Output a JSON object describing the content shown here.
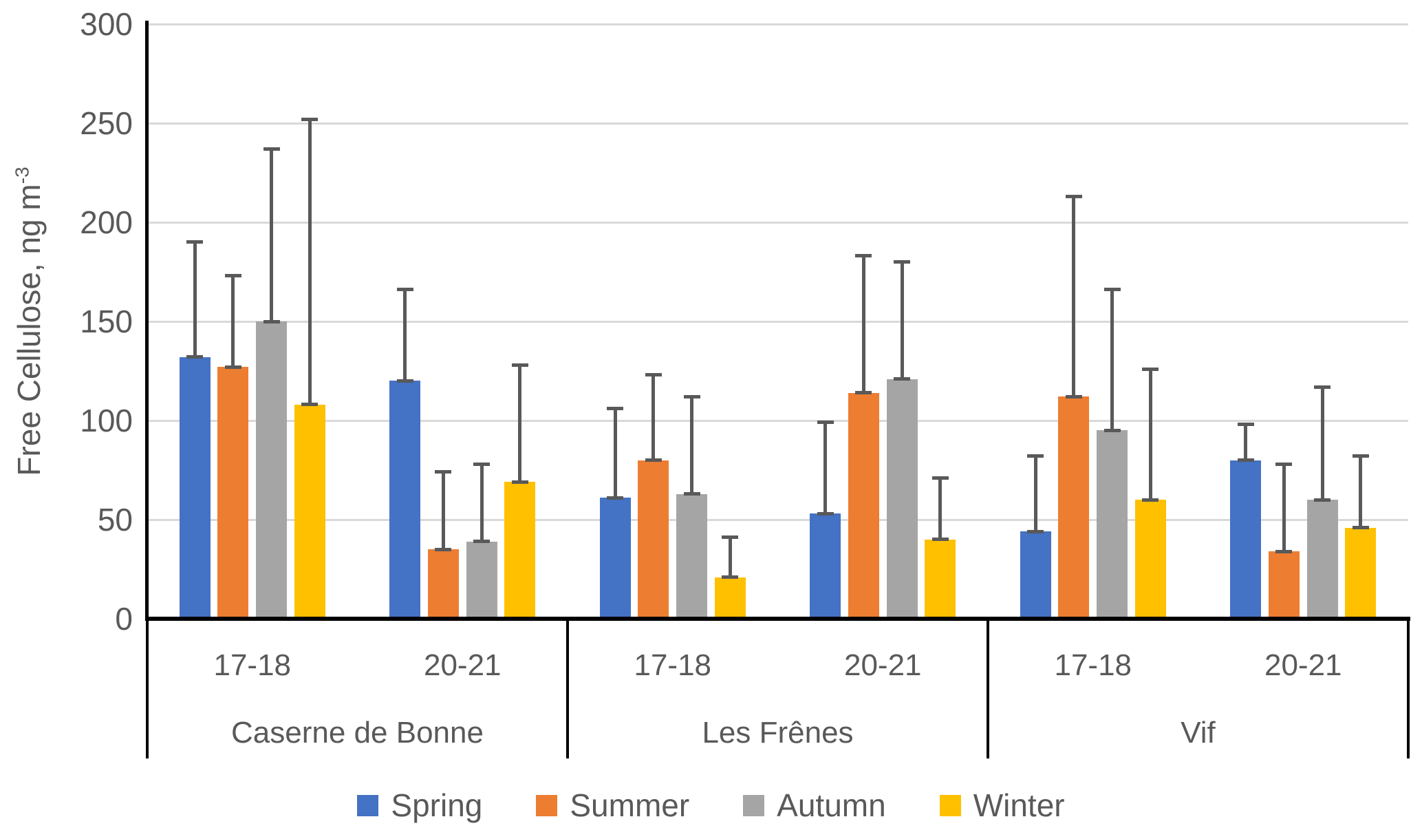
{
  "chart_data": {
    "type": "bar",
    "title": "",
    "ylabel": "Free Cellulose, ng m⁻³",
    "ylabel_base": "Free Cellulose, ng m",
    "ylabel_superscript": "-3",
    "ylim": [
      0,
      300
    ],
    "yticks": [
      0,
      50,
      100,
      150,
      200,
      250,
      300
    ],
    "grid": true,
    "legend_position": "bottom-center",
    "axis_text_color": "#595959",
    "gridline_color": "#D9D9D9",
    "error_bar_color": "#595959",
    "error_bars": "upper only, with caps at bar top and whisker top",
    "locations": [
      {
        "name": "Caserne de Bonne",
        "periods": [
          "17-18",
          "20-21"
        ]
      },
      {
        "name": "Les Frênes",
        "periods": [
          "17-18",
          "20-21"
        ]
      },
      {
        "name": "Vif",
        "periods": [
          "17-18",
          "20-21"
        ]
      }
    ],
    "group_labels": [
      "17-18",
      "20-21",
      "17-18",
      "20-21",
      "17-18",
      "20-21"
    ],
    "series": [
      {
        "name": "Spring",
        "color": "#4472C4",
        "values": [
          132,
          120,
          61,
          53,
          44,
          80
        ],
        "error_top": [
          190,
          166,
          106,
          99,
          82,
          98
        ]
      },
      {
        "name": "Summer",
        "color": "#ED7D31",
        "values": [
          127,
          35,
          80,
          114,
          112,
          34
        ],
        "error_top": [
          173,
          74,
          123,
          183,
          213,
          78
        ]
      },
      {
        "name": "Autumn",
        "color": "#A5A5A5",
        "values": [
          150,
          39,
          63,
          121,
          95,
          60
        ],
        "error_top": [
          237,
          78,
          112,
          180,
          166,
          117
        ]
      },
      {
        "name": "Winter",
        "color": "#FFC000",
        "values": [
          108,
          69,
          21,
          40,
          60,
          46
        ],
        "error_top": [
          252,
          128,
          41,
          71,
          126,
          82
        ]
      }
    ]
  }
}
